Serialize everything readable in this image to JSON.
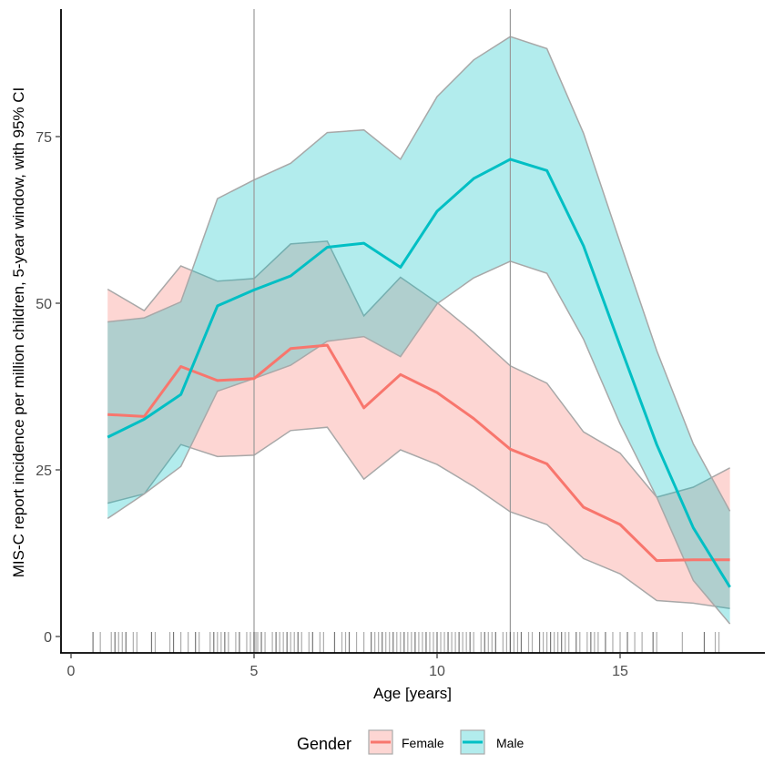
{
  "chart_data": {
    "type": "line",
    "subtype": "line-with-confidence-ribbon-and-rug",
    "xlabel": "Age [years]",
    "ylabel": "MIS-C report incidence per million children, 5-year window, with 95% CI",
    "xlim": [
      -0.1,
      18.4
    ],
    "ylim": [
      -2.5,
      94
    ],
    "x_ticks": [
      0,
      5,
      10,
      15
    ],
    "y_ticks": [
      0,
      25,
      50,
      75
    ],
    "vlines": [
      5,
      12
    ],
    "grid": false,
    "legend": {
      "title": "Gender",
      "position": "bottom"
    },
    "x": [
      1,
      2,
      3,
      4,
      5,
      6,
      7,
      8,
      9,
      10,
      11,
      12,
      13,
      14,
      15,
      16,
      17,
      18
    ],
    "series": [
      {
        "name": "Female",
        "color": "#F8766D",
        "fill": "#F8766D",
        "values": [
          33.3,
          33.0,
          40.5,
          38.4,
          38.7,
          43.2,
          43.7,
          34.3,
          39.3,
          36.6,
          32.7,
          28.1,
          25.9,
          19.4,
          16.8,
          11.4,
          11.5,
          11.5
        ],
        "upper": [
          52.1,
          48.9,
          55.6,
          53.3,
          53.7,
          58.9,
          59.3,
          48.1,
          53.9,
          50.1,
          45.6,
          40.6,
          38.0,
          30.7,
          27.5,
          20.9,
          22.4,
          25.3
        ],
        "lower": [
          20.0,
          21.4,
          28.8,
          27.0,
          27.2,
          30.9,
          31.4,
          23.6,
          28.0,
          25.8,
          22.5,
          18.7,
          16.8,
          11.7,
          9.4,
          5.4,
          5.0,
          4.2
        ]
      },
      {
        "name": "Male",
        "color": "#00BFC4",
        "fill": "#00BFC4",
        "values": [
          29.9,
          32.6,
          36.3,
          49.6,
          52.0,
          54.1,
          58.4,
          59.0,
          55.4,
          63.8,
          68.7,
          71.6,
          69.9,
          58.6,
          43.6,
          28.8,
          16.3,
          7.4
        ],
        "upper": [
          47.2,
          47.8,
          50.2,
          65.7,
          68.5,
          71.0,
          75.6,
          76.0,
          71.6,
          81.0,
          86.5,
          90.0,
          88.2,
          75.5,
          59.1,
          42.9,
          28.9,
          18.8
        ],
        "lower": [
          17.7,
          21.4,
          25.5,
          36.8,
          38.7,
          40.7,
          44.3,
          45.0,
          42.0,
          49.9,
          53.8,
          56.3,
          54.5,
          44.6,
          31.9,
          20.9,
          8.4,
          1.9
        ]
      }
    ],
    "rug_ages": [
      0.6,
      0.8,
      1.1,
      1.2,
      1.3,
      1.4,
      1.5,
      1.7,
      1.8,
      2.2,
      2.3,
      2.7,
      2.8,
      3.0,
      3.2,
      3.4,
      3.5,
      3.8,
      3.9,
      4.0,
      4.1,
      4.2,
      4.3,
      4.5,
      4.6,
      4.8,
      4.9,
      5.0,
      5.05,
      5.1,
      5.2,
      5.3,
      5.5,
      5.6,
      5.7,
      5.8,
      5.9,
      6.0,
      6.1,
      6.2,
      6.3,
      6.5,
      6.6,
      6.8,
      6.9,
      7.2,
      7.4,
      7.5,
      7.6,
      7.8,
      8.0,
      8.2,
      8.3,
      8.4,
      8.5,
      8.6,
      8.7,
      8.8,
      8.9,
      9.0,
      9.1,
      9.2,
      9.3,
      9.4,
      9.5,
      9.6,
      9.7,
      9.8,
      9.9,
      10.0,
      10.1,
      10.2,
      10.3,
      10.4,
      10.5,
      10.6,
      10.7,
      10.8,
      10.9,
      11.0,
      11.2,
      11.3,
      11.4,
      11.5,
      11.6,
      11.8,
      11.9,
      12.0,
      12.1,
      12.2,
      12.3,
      12.5,
      12.6,
      12.8,
      12.9,
      13.0,
      13.1,
      13.2,
      13.3,
      13.4,
      13.5,
      13.6,
      13.8,
      13.9,
      14.1,
      14.2,
      14.3,
      14.4,
      14.6,
      14.8,
      15.0,
      15.2,
      15.4,
      15.6,
      15.9,
      16.0,
      16.7,
      17.3,
      17.6,
      17.7
    ]
  }
}
